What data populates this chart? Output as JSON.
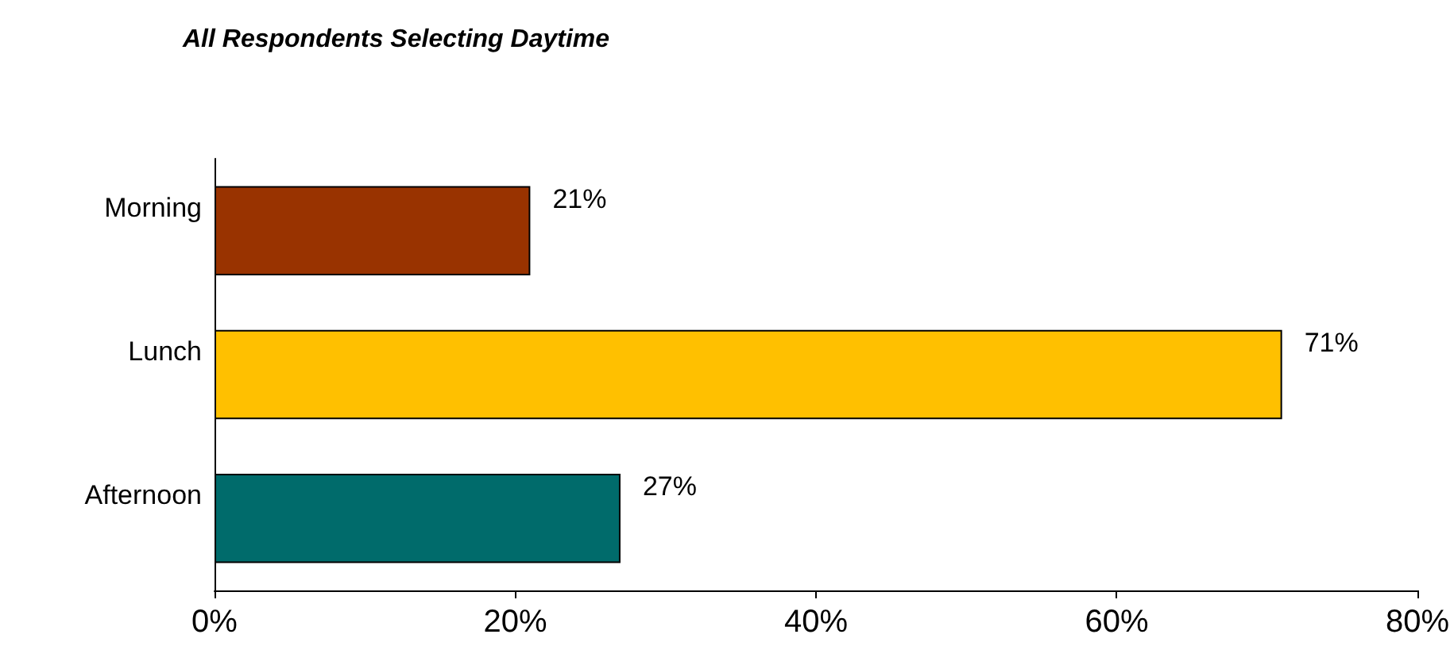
{
  "chart_data": {
    "type": "bar",
    "orientation": "horizontal",
    "title": "All Respondents Selecting Daytime",
    "categories": [
      "Morning",
      "Lunch",
      "Afternoon"
    ],
    "values": [
      21,
      71,
      27
    ],
    "colors": [
      "#993300",
      "#ffc000",
      "#006b6b"
    ],
    "value_labels": [
      "21%",
      "71%",
      "27%"
    ],
    "xlim": [
      0,
      80
    ],
    "xticks": [
      {
        "value": 0,
        "label": "0%"
      },
      {
        "value": 20,
        "label": "20%"
      },
      {
        "value": 40,
        "label": "40%"
      },
      {
        "value": 60,
        "label": "60%"
      },
      {
        "value": 80,
        "label": "80%"
      }
    ],
    "grid": false
  }
}
